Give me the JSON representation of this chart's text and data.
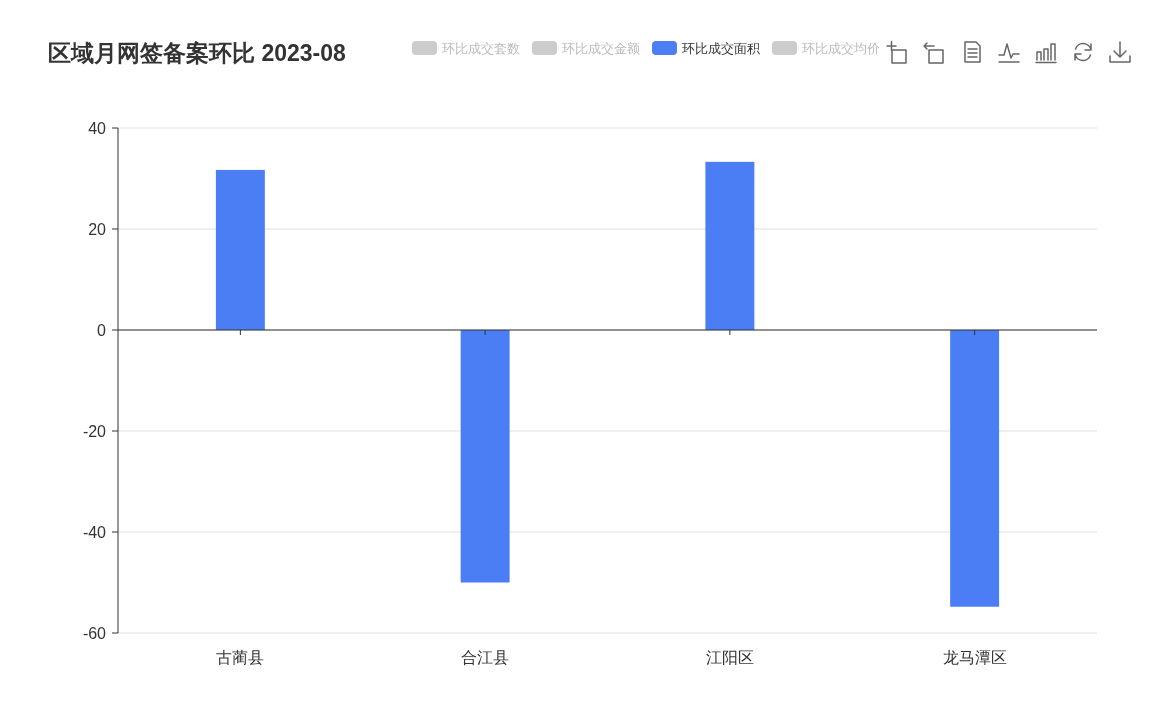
{
  "chart_data": {
    "type": "bar",
    "title": "区域月网签备案环比 2023-08",
    "categories": [
      "古蔺县",
      "合江县",
      "江阳区",
      "龙马潭区"
    ],
    "series": [
      {
        "name": "环比成交套数",
        "color": "#cccccc",
        "values": [
          null,
          null,
          null,
          null
        ]
      },
      {
        "name": "环比成交金额",
        "color": "#cccccc",
        "values": [
          null,
          null,
          null,
          null
        ]
      },
      {
        "name": "环比成交面积",
        "color": "#4b7ef4",
        "values": [
          31.7,
          -50.0,
          33.3,
          -54.8
        ]
      },
      {
        "name": "环比成交均价",
        "color": "#cccccc",
        "values": [
          null,
          null,
          null,
          null
        ]
      }
    ],
    "ylim": [
      -60,
      40
    ],
    "yticks": [
      -60,
      -40,
      -20,
      0,
      20,
      40
    ],
    "grid": "y",
    "legend": "top right"
  }
}
